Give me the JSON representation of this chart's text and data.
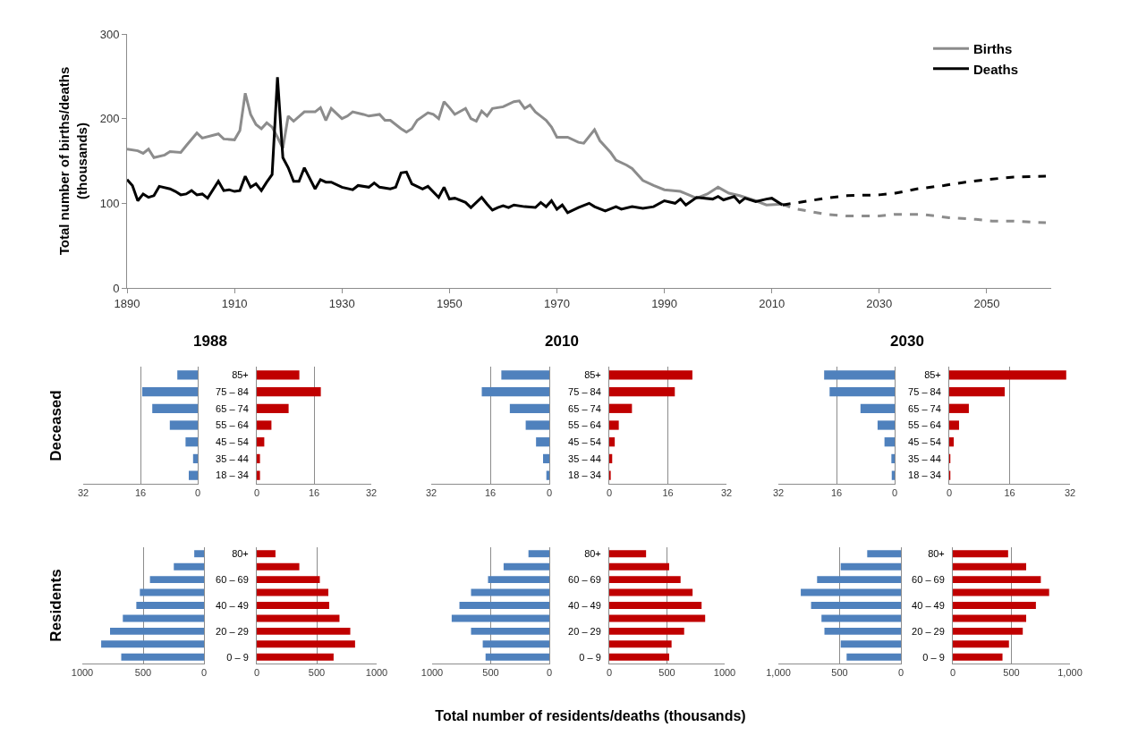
{
  "chart_data": [
    {
      "type": "line",
      "ylabel": "Total number of births/deaths (thousands)",
      "xlim": [
        1890,
        2062
      ],
      "xticks": [
        1890,
        1910,
        1930,
        1950,
        1970,
        1990,
        2010,
        2030,
        2050
      ],
      "ylim": [
        0,
        300
      ],
      "yticks": [
        0,
        100,
        200,
        300
      ],
      "legend": "top right",
      "series": [
        {
          "name": "Births",
          "color": "#8c8c8c",
          "x": [
            1890,
            1892,
            1893,
            1894,
            1895,
            1897,
            1898,
            1900,
            1901,
            1903,
            1904,
            1907,
            1908,
            1910,
            1911,
            1912,
            1913,
            1914,
            1915,
            1916,
            1917,
            1918,
            1919,
            1920,
            1921,
            1923,
            1925,
            1926,
            1927,
            1928,
            1930,
            1931,
            1932,
            1934,
            1935,
            1937,
            1938,
            1939,
            1941,
            1942,
            1943,
            1944,
            1946,
            1947,
            1948,
            1949,
            1950,
            1951,
            1953,
            1954,
            1955,
            1956,
            1957,
            1958,
            1960,
            1962,
            1963,
            1964,
            1965,
            1966,
            1967,
            1968,
            1969,
            1970,
            1972,
            1974,
            1975,
            1977,
            1978,
            1980,
            1981,
            1983,
            1984,
            1986,
            1988,
            1990,
            1993,
            1996,
            1998,
            2000,
            2002,
            2004,
            2007,
            2009,
            2012
          ],
          "values": [
            164,
            162,
            159,
            164,
            154,
            157,
            161,
            160,
            168,
            183,
            177,
            182,
            176,
            175,
            186,
            230,
            205,
            193,
            188,
            195,
            190,
            178,
            165,
            203,
            197,
            208,
            208,
            213,
            198,
            212,
            200,
            203,
            208,
            205,
            203,
            205,
            198,
            198,
            188,
            184,
            188,
            198,
            207,
            205,
            200,
            220,
            213,
            205,
            212,
            200,
            197,
            209,
            203,
            212,
            214,
            220,
            221,
            212,
            216,
            208,
            203,
            198,
            190,
            178,
            178,
            172,
            171,
            187,
            174,
            160,
            151,
            145,
            141,
            127,
            121,
            116,
            114,
            106,
            111,
            119,
            112,
            109,
            103,
            98,
            99
          ]
        },
        {
          "name": "Deaths",
          "color": "#000000",
          "x": [
            1890,
            1891,
            1892,
            1893,
            1894,
            1895,
            1896,
            1898,
            1899,
            1900,
            1901,
            1902,
            1903,
            1904,
            1905,
            1907,
            1908,
            1909,
            1910,
            1911,
            1912,
            1913,
            1914,
            1915,
            1916,
            1917,
            1918,
            1919,
            1920,
            1921,
            1922,
            1923,
            1925,
            1926,
            1927,
            1928,
            1930,
            1932,
            1933,
            1935,
            1936,
            1937,
            1939,
            1940,
            1941,
            1942,
            1943,
            1945,
            1946,
            1948,
            1949,
            1950,
            1951,
            1953,
            1954,
            1956,
            1957,
            1958,
            1959,
            1960,
            1961,
            1962,
            1964,
            1966,
            1967,
            1968,
            1969,
            1970,
            1971,
            1972,
            1974,
            1976,
            1977,
            1979,
            1981,
            1982,
            1984,
            1986,
            1988,
            1990,
            1992,
            1993,
            1994,
            1996,
            1999,
            2000,
            2001,
            2003,
            2004,
            2005,
            2007,
            2009,
            2010,
            2012
          ],
          "values": [
            128,
            121,
            103,
            111,
            107,
            109,
            120,
            117,
            114,
            110,
            111,
            115,
            110,
            111,
            106,
            126,
            115,
            116,
            114,
            115,
            132,
            119,
            123,
            115,
            125,
            134,
            249,
            154,
            142,
            126,
            126,
            142,
            117,
            128,
            125,
            125,
            119,
            116,
            121,
            119,
            124,
            119,
            117,
            119,
            136,
            137,
            123,
            117,
            120,
            107,
            119,
            105,
            106,
            101,
            95,
            107,
            99,
            92,
            95,
            97,
            95,
            98,
            96,
            95,
            101,
            96,
            103,
            93,
            98,
            89,
            95,
            100,
            96,
            91,
            96,
            93,
            96,
            94,
            96,
            103,
            100,
            105,
            98,
            107,
            105,
            108,
            104,
            108,
            101,
            106,
            102,
            105,
            106,
            98
          ]
        },
        {
          "color": "#8c8c8c",
          "line_style": "dashed",
          "x": [
            2012,
            2014,
            2020,
            2024,
            2030,
            2033,
            2038,
            2043,
            2048,
            2051,
            2055,
            2061
          ],
          "values": [
            99,
            94,
            87,
            85,
            85,
            87,
            87,
            83,
            81,
            79,
            79,
            77
          ]
        },
        {
          "color": "#000000",
          "line_style": "dashed",
          "x": [
            2012,
            2014,
            2020,
            2024,
            2030,
            2033,
            2037,
            2042,
            2046,
            2050,
            2055,
            2061
          ],
          "values": [
            98,
            100,
            106,
            109,
            110,
            112,
            117,
            121,
            125,
            128,
            131,
            132
          ]
        }
      ]
    },
    {
      "type": "bar",
      "orientation": "horizontal",
      "title": "1988",
      "ylabel": "Deceased",
      "categories": [
        null,
        null,
        null,
        null,
        null,
        null,
        null
      ],
      "values": [
        5.7,
        15.5,
        12.7,
        7.8,
        3.4,
        1.3,
        2.5
      ],
      "color": "#4f81bd",
      "xlim": [
        32,
        0
      ],
      "xticks": [
        32,
        16,
        0
      ],
      "grid": "x",
      "tick_labels": "x"
    },
    {
      "type": "bar",
      "orientation": "horizontal",
      "categories": [
        "85+",
        "75 – 84",
        "65 – 74",
        "55 – 64",
        "45 – 54",
        "35 – 44",
        "18 – 34"
      ],
      "values": [
        11.9,
        17.9,
        8.9,
        4.1,
        2.1,
        0.9,
        0.9
      ],
      "color": "#c00000",
      "xlim": [
        0,
        32
      ],
      "xticks": [
        0,
        16,
        32
      ],
      "grid": "x"
    },
    {
      "type": "bar",
      "orientation": "horizontal",
      "title": "2010",
      "categories": [
        null,
        null,
        null,
        null,
        null,
        null,
        null
      ],
      "values": [
        13,
        18.3,
        10.7,
        6.4,
        3.6,
        1.7,
        0.8
      ],
      "color": "#4f81bd",
      "xlim": [
        32,
        0
      ],
      "xticks": [
        32,
        16,
        0
      ],
      "grid": "x",
      "tick_labels": "x"
    },
    {
      "type": "bar",
      "orientation": "horizontal",
      "categories": [
        "85+",
        "75 – 84",
        "65 – 74",
        "55 – 64",
        "45 – 54",
        "35 – 44",
        "18 – 34"
      ],
      "values": [
        22.7,
        17.9,
        6.2,
        2.6,
        1.5,
        0.8,
        0.4
      ],
      "color": "#c00000",
      "xlim": [
        0,
        32
      ],
      "xticks": [
        0,
        16,
        32
      ],
      "grid": "x"
    },
    {
      "type": "bar",
      "orientation": "horizontal",
      "title": "2030",
      "categories": [
        null,
        null,
        null,
        null,
        null,
        null,
        null
      ],
      "values": [
        19.4,
        17.9,
        9.4,
        4.7,
        2.8,
        0.9,
        0.8
      ],
      "color": "#4f81bd",
      "xlim": [
        32,
        0
      ],
      "xticks": [
        32,
        16,
        0
      ],
      "grid": "x",
      "tick_labels": "x"
    },
    {
      "type": "bar",
      "orientation": "horizontal",
      "categories": [
        "85+",
        "75 – 84",
        "65 – 74",
        "55 – 64",
        "45 – 54",
        "35 – 44",
        "18 – 34"
      ],
      "values": [
        31,
        14.7,
        5.2,
        2.6,
        1.2,
        0.3,
        0.3
      ],
      "color": "#c00000",
      "xlim": [
        0,
        32
      ],
      "xticks": [
        0,
        16,
        32
      ],
      "grid": "x"
    },
    {
      "type": "bar",
      "orientation": "horizontal",
      "ylabel": "Residents",
      "categories": [
        null,
        null,
        null,
        null,
        null,
        null,
        null,
        null,
        null
      ],
      "values": [
        80,
        248,
        444,
        527,
        556,
        667,
        772,
        845,
        680
      ],
      "color": "#4f81bd",
      "xlim": [
        1000,
        0
      ],
      "xticks": [
        1000,
        500,
        0
      ],
      "grid": "x",
      "tick_labels": "x"
    },
    {
      "type": "bar",
      "orientation": "horizontal",
      "categories": [
        "80+",
        null,
        "60 – 69",
        null,
        "40 – 49",
        null,
        "20 – 29",
        null,
        "0 – 9"
      ],
      "values": [
        156,
        355,
        526,
        597,
        604,
        690,
        780,
        820,
        641
      ],
      "color": "#c00000",
      "xlim": [
        0,
        1000
      ],
      "xticks": [
        0,
        500,
        1000
      ],
      "grid": "x"
    },
    {
      "type": "bar",
      "orientation": "horizontal",
      "xlabel": "Total number of residents/deaths (thousands)",
      "categories": [
        null,
        null,
        null,
        null,
        null,
        null,
        null,
        null,
        null
      ],
      "values": [
        178,
        390,
        523,
        668,
        767,
        833,
        668,
        568,
        544
      ],
      "color": "#4f81bd",
      "xlim": [
        1000,
        0
      ],
      "xticks": [
        1000,
        500,
        0
      ],
      "grid": "x",
      "tick_labels": "x"
    },
    {
      "type": "bar",
      "orientation": "horizontal",
      "categories": [
        "80+",
        null,
        "60 – 69",
        null,
        "40 – 49",
        null,
        "20 – 29",
        null,
        "0 – 9"
      ],
      "values": [
        319,
        519,
        618,
        722,
        800,
        831,
        649,
        540,
        519
      ],
      "color": "#c00000",
      "xlim": [
        0,
        1000
      ],
      "xticks": [
        0,
        500,
        1000
      ],
      "grid": "x"
    },
    {
      "type": "bar",
      "orientation": "horizontal",
      "categories": [
        null,
        null,
        null,
        null,
        null,
        null,
        null,
        null,
        null
      ],
      "values": [
        275,
        491,
        684,
        817,
        733,
        648,
        624,
        491,
        443
      ],
      "color": "#4f81bd",
      "xlim": [
        1000,
        0
      ],
      "xticks": [
        {
          "value": 1000,
          "label": "1,000"
        },
        500,
        0
      ],
      "grid": "x",
      "tick_labels": "x"
    },
    {
      "type": "bar",
      "orientation": "horizontal",
      "categories": [
        "80+",
        null,
        "60 – 69",
        null,
        "40 – 49",
        null,
        "20 – 29",
        null,
        "0 – 9"
      ],
      "values": [
        472,
        626,
        751,
        822,
        709,
        626,
        597,
        479,
        424
      ],
      "color": "#c00000",
      "xlim": [
        0,
        1000
      ],
      "xticks": [
        0,
        500,
        {
          "value": 1000,
          "label": "1,000"
        }
      ],
      "grid": "x"
    }
  ]
}
